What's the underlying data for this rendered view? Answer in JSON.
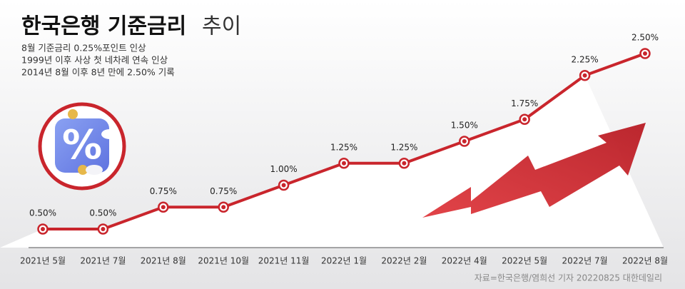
{
  "chart_data": {
    "type": "line",
    "title": "한국은행 기준금리",
    "title_2": "추이",
    "subtitle": [
      "8월 기준금리 0.25%포인트 인상",
      "1999년 이후 사상 첫 네차례 연속 인상",
      "2014년 8월 이후 8년 만에 2.50% 기록"
    ],
    "source": "자료=한국은행/염희선 기자 20220825 대한데일리",
    "categories": [
      "2021년 5월",
      "2021년 7월",
      "2021년 8월",
      "2021년 10월",
      "2021년 11월",
      "2022년 1월",
      "2022년 2월",
      "2022년 4월",
      "2022년 5월",
      "2022년 7월",
      "2022년 8월"
    ],
    "values": [
      0.5,
      0.5,
      0.75,
      0.75,
      1.0,
      1.25,
      1.25,
      1.5,
      1.75,
      2.25,
      2.5
    ],
    "value_labels": [
      "0.50%",
      "0.50%",
      "0.75%",
      "0.75%",
      "1.00%",
      "1.25%",
      "1.25%",
      "1.50%",
      "1.75%",
      "2.25%",
      "2.50%"
    ],
    "color": "#c9252c"
  }
}
